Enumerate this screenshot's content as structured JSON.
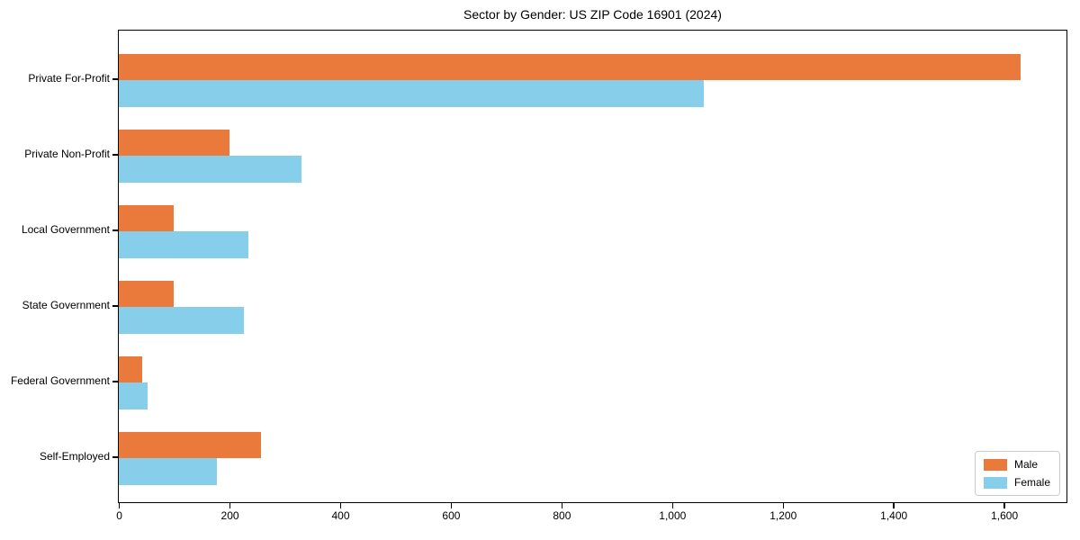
{
  "chart_data": {
    "type": "bar",
    "orientation": "horizontal",
    "title": "Sector by Gender: US ZIP Code 16901 (2024)",
    "categories": [
      "Private For-Profit",
      "Private Non-Profit",
      "Local Government",
      "State Government",
      "Federal Government",
      "Self-Employed"
    ],
    "series": [
      {
        "name": "Male",
        "color": "#E97A3B",
        "values": [
          1630,
          200,
          100,
          100,
          42,
          257
        ]
      },
      {
        "name": "Female",
        "color": "#86CEEA",
        "values": [
          1057,
          330,
          235,
          226,
          52,
          177
        ]
      }
    ],
    "xlabel": "",
    "ylabel": "",
    "xlim": [
      0,
      1713
    ],
    "xticks": [
      0,
      200,
      400,
      600,
      800,
      1000,
      1200,
      1400,
      1600
    ],
    "xtick_labels": [
      "0",
      "200",
      "400",
      "600",
      "800",
      "1,000",
      "1,200",
      "1,400",
      "1,600"
    ],
    "grid": false,
    "legend_position": "lower right",
    "spines": "full-box",
    "background_color": "#ffffff",
    "text_color": "#000000"
  }
}
